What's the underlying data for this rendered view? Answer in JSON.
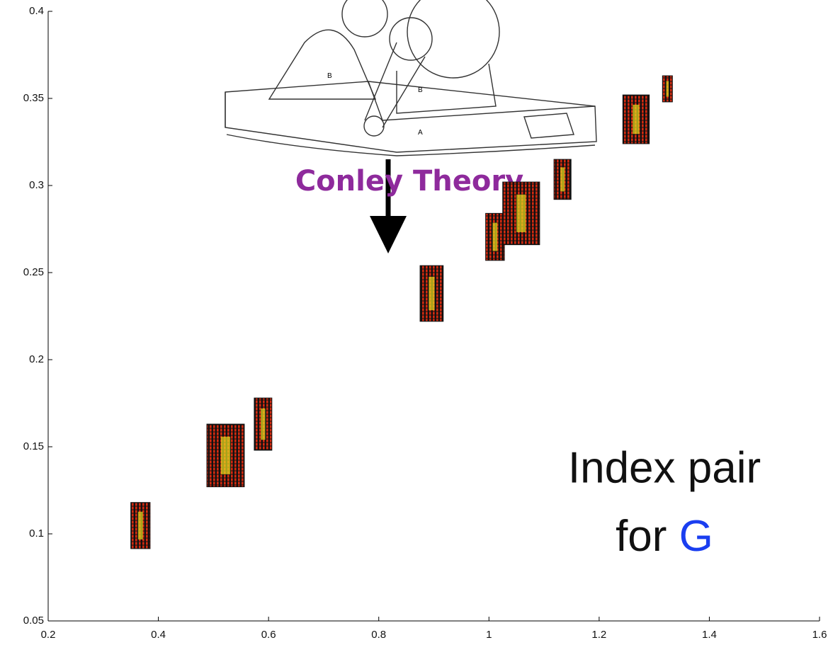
{
  "chart_data": {
    "type": "rect",
    "regions": [
      {
        "x": [
          0.35,
          0.385
        ],
        "y": [
          0.0915,
          0.118
        ]
      },
      {
        "x": [
          0.488,
          0.556
        ],
        "y": [
          0.127,
          0.163
        ]
      },
      {
        "x": [
          0.574,
          0.606
        ],
        "y": [
          0.148,
          0.178
        ]
      },
      {
        "x": [
          0.875,
          0.917
        ],
        "y": [
          0.222,
          0.254
        ]
      },
      {
        "x": [
          0.994,
          1.028
        ],
        "y": [
          0.257,
          0.284
        ]
      },
      {
        "x": [
          1.025,
          1.092
        ],
        "y": [
          0.266,
          0.302
        ]
      },
      {
        "x": [
          1.118,
          1.149
        ],
        "y": [
          0.292,
          0.315
        ]
      },
      {
        "x": [
          1.243,
          1.291
        ],
        "y": [
          0.324,
          0.352
        ]
      },
      {
        "x": [
          1.315,
          1.333
        ],
        "y": [
          0.348,
          0.363
        ]
      }
    ],
    "color": "#d42a10",
    "core_color": "#e8e020",
    "xlim": [
      0.2,
      1.6
    ],
    "xticks": [
      0.2,
      0.4,
      0.6,
      0.8,
      1,
      1.2,
      1.4,
      1.6
    ],
    "ylim": [
      0.05,
      0.4
    ],
    "yticks": [
      0.05,
      0.1,
      0.15,
      0.2,
      0.25,
      0.3,
      0.35,
      0.4
    ],
    "annotations": {
      "method": "Conley Theory",
      "caption_line1": "Index pair",
      "caption_line2": "for ",
      "caption_symbol": "G"
    }
  }
}
